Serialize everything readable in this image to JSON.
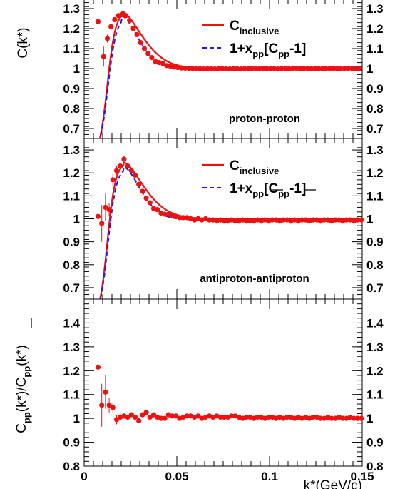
{
  "chart_data": [
    {
      "type": "scatter",
      "panel": "proton-proton",
      "ylabel": "C(k*)",
      "ylim": [
        0.65,
        1.35
      ],
      "yticks": [
        "0.7",
        "0.8",
        "0.9",
        "1",
        "1.1",
        "1.2",
        "1.3"
      ],
      "panel_label": "proton-proton",
      "legend": [
        {
          "main": "C",
          "sub": "inclusive",
          "style": "solid",
          "color": "#ee1111"
        },
        {
          "main": "1+x",
          "sub": "pp",
          "main2": "[C",
          "sub2": "pp",
          "tail": "-1]",
          "style": "dashed",
          "color": "#1a1aee"
        }
      ],
      "points": {
        "name": "",
        "color": "#ee1111",
        "x": [
          0.0075,
          0.0105,
          0.0125,
          0.0145,
          0.0165,
          0.0185,
          0.0205,
          0.0225,
          0.0245,
          0.0265,
          0.0285,
          0.0305,
          0.0325,
          0.0345,
          0.0365,
          0.0385,
          0.0405,
          0.0425,
          0.0445,
          0.0465,
          0.0485,
          0.0505,
          0.0525,
          0.0545,
          0.0565,
          0.0585,
          0.0605,
          0.0625,
          0.0645,
          0.0665,
          0.0685,
          0.0705,
          0.0725,
          0.0745,
          0.0765,
          0.0785,
          0.0805,
          0.0825,
          0.0845,
          0.0865,
          0.0885,
          0.0905,
          0.0925,
          0.0945,
          0.0965,
          0.0985,
          0.1005,
          0.1025,
          0.1045,
          0.1065,
          0.1085,
          0.1105,
          0.1125,
          0.1145,
          0.1165,
          0.1185,
          0.1205,
          0.1225,
          0.1245,
          0.1265,
          0.1285,
          0.1305,
          0.1325,
          0.1345,
          0.1365,
          0.1385,
          0.1405,
          0.1425,
          0.1445,
          0.1465,
          0.1485
        ],
        "y": [
          1.235,
          1.06,
          1.15,
          1.21,
          1.245,
          1.265,
          1.27,
          1.265,
          1.24,
          1.2,
          1.17,
          1.13,
          1.1,
          1.075,
          1.055,
          1.035,
          1.03,
          1.025,
          1.015,
          1.012,
          1.008,
          1.005,
          1.003,
          1.002,
          1.001,
          1.0,
          1.0,
          0.999,
          0.998,
          0.999,
          1.0,
          0.998,
          0.999,
          1.0,
          0.999,
          0.998,
          1.0,
          0.999,
          0.998,
          1.0,
          0.999,
          1.0,
          1.0,
          0.999,
          1.001,
          1.0,
          0.999,
          1.0,
          0.998,
          1.0,
          1.0,
          0.999,
          1.0,
          1.001,
          0.999,
          1.0,
          1.0,
          0.999,
          1.0,
          1.0,
          0.999,
          1.0,
          1.0,
          1.001,
          0.999,
          1.0,
          1.0,
          1.001,
          1.0,
          1.0,
          0.999
        ],
        "err": [
          0.16,
          0.05,
          0.02,
          0.015,
          0.01,
          0.01,
          0.008,
          0.008,
          0.008,
          0.007,
          0.006,
          0.006,
          0.005,
          0.005,
          0.005,
          0.004,
          0.004,
          0.004,
          0.004,
          0.003,
          0.003,
          0.003,
          0.003,
          0.003,
          0.003,
          0.003,
          0.003,
          0.003,
          0.003,
          0.003,
          0.003,
          0.003,
          0.003,
          0.003,
          0.003,
          0.003,
          0.003,
          0.003,
          0.003,
          0.003,
          0.003,
          0.003,
          0.003,
          0.003,
          0.003,
          0.003,
          0.003,
          0.003,
          0.003,
          0.003,
          0.003,
          0.003,
          0.003,
          0.003,
          0.003,
          0.003,
          0.003,
          0.003,
          0.003,
          0.003,
          0.003,
          0.003,
          0.003,
          0.003,
          0.003,
          0.003,
          0.003,
          0.003,
          0.003,
          0.003,
          0.003
        ]
      },
      "solid_curve": {
        "peak_x": 0.0205,
        "peak_y": 1.285
      },
      "dashed_curve": {
        "peak_x": 0.0205,
        "peak_y": 1.262
      }
    },
    {
      "type": "scatter",
      "panel": "antiproton-antiproton",
      "ylabel": "",
      "ylim": [
        0.65,
        1.35
      ],
      "yticks": [
        "0.7",
        "0.8",
        "0.9",
        "1",
        "1.1",
        "1.2",
        "1.3"
      ],
      "panel_label": "antiproton-antiproton",
      "legend": [
        {
          "main": "C",
          "sub": "inclusive",
          "style": "solid",
          "color": "#ee1111"
        },
        {
          "main": "1+x",
          "sub": "pp",
          "main2": "[C",
          "sub2": "pp",
          "tail": "-1]",
          "style": "dashed",
          "color": "#1a1aee",
          "overline": true
        }
      ],
      "points": {
        "name": "",
        "color": "#ee1111",
        "x": [
          0.0075,
          0.0095,
          0.0115,
          0.0135,
          0.0155,
          0.0175,
          0.0195,
          0.0215,
          0.0235,
          0.0255,
          0.0275,
          0.0295,
          0.0315,
          0.0335,
          0.0355,
          0.0375,
          0.0395,
          0.0415,
          0.0435,
          0.0455,
          0.0475,
          0.0495,
          0.0515,
          0.0535,
          0.0555,
          0.0575,
          0.0595,
          0.0615,
          0.0635,
          0.0655,
          0.0675,
          0.0695,
          0.0715,
          0.0735,
          0.0755,
          0.0775,
          0.0795,
          0.0815,
          0.0835,
          0.0855,
          0.0875,
          0.0895,
          0.0915,
          0.0935,
          0.0955,
          0.0975,
          0.0995,
          0.1015,
          0.1035,
          0.1055,
          0.1075,
          0.1095,
          0.1115,
          0.1135,
          0.1155,
          0.1175,
          0.1195,
          0.1215,
          0.1235,
          0.1255,
          0.1275,
          0.1295,
          0.1315,
          0.1335,
          0.1355,
          0.1375,
          0.1395,
          0.1415,
          0.1435,
          0.1455,
          0.1475,
          0.1495
        ],
        "y": [
          1.01,
          0.98,
          1.05,
          1.04,
          1.17,
          1.21,
          1.23,
          1.26,
          1.23,
          1.21,
          1.19,
          1.15,
          1.12,
          1.09,
          1.07,
          1.045,
          1.04,
          1.025,
          1.02,
          1.02,
          1.015,
          1.01,
          1.005,
          1.005,
          1.005,
          1.0,
          0.995,
          1.0,
          0.995,
          1.0,
          0.995,
          0.995,
          0.99,
          0.995,
          0.99,
          0.99,
          0.995,
          0.99,
          0.99,
          0.995,
          0.99,
          0.99,
          0.99,
          0.995,
          0.99,
          0.995,
          0.99,
          0.995,
          0.995,
          0.99,
          0.995,
          0.995,
          0.99,
          0.995,
          0.99,
          0.995,
          0.995,
          0.99,
          0.995,
          0.995,
          0.99,
          0.995,
          0.995,
          0.99,
          0.995,
          0.995,
          0.99,
          0.995,
          0.995,
          0.99,
          0.995,
          0.995
        ],
        "err": [
          0.18,
          0.08,
          0.06,
          0.03,
          0.025,
          0.02,
          0.015,
          0.012,
          0.01,
          0.009,
          0.008,
          0.007,
          0.007,
          0.006,
          0.006,
          0.005,
          0.005,
          0.005,
          0.005,
          0.005,
          0.004,
          0.004,
          0.004,
          0.004,
          0.004,
          0.004,
          0.004,
          0.004,
          0.004,
          0.004,
          0.004,
          0.004,
          0.004,
          0.004,
          0.004,
          0.004,
          0.004,
          0.004,
          0.004,
          0.004,
          0.004,
          0.004,
          0.004,
          0.004,
          0.004,
          0.004,
          0.004,
          0.004,
          0.004,
          0.004,
          0.004,
          0.004,
          0.004,
          0.004,
          0.004,
          0.004,
          0.004,
          0.004,
          0.004,
          0.004,
          0.004,
          0.004,
          0.004,
          0.004,
          0.004,
          0.004,
          0.004,
          0.004,
          0.004,
          0.004,
          0.004,
          0.004
        ]
      },
      "solid_curve": {
        "peak_x": 0.0215,
        "peak_y": 1.245
      },
      "dashed_curve": {
        "peak_x": 0.0215,
        "peak_y": 1.225
      }
    },
    {
      "type": "scatter",
      "panel": "ratio",
      "ylabel_parts": {
        "a": "C",
        "a_sub": "pp",
        "b": "(k*)/C",
        "b_sub": "pp",
        "c": "(k*)"
      },
      "ylim": [
        0.8,
        1.5
      ],
      "yticks": [
        "0.8",
        "0.9",
        "1",
        "1.1",
        "1.2",
        "1.3",
        "1.4"
      ],
      "xlabel": "k*(GeV/c)",
      "xlim": [
        0,
        0.15
      ],
      "xticks": [
        "0",
        "0.05",
        "0.1",
        "0.15"
      ],
      "points": {
        "name": "",
        "color": "#ee1111",
        "x": [
          0.0075,
          0.0095,
          0.0115,
          0.0135,
          0.0155,
          0.0175,
          0.0195,
          0.0215,
          0.0235,
          0.0255,
          0.0275,
          0.0295,
          0.0315,
          0.0335,
          0.0355,
          0.0375,
          0.0395,
          0.0415,
          0.0435,
          0.0455,
          0.0475,
          0.0495,
          0.0515,
          0.0535,
          0.0555,
          0.0575,
          0.0595,
          0.0615,
          0.0635,
          0.0655,
          0.0675,
          0.0695,
          0.0715,
          0.0735,
          0.0755,
          0.0775,
          0.0795,
          0.0815,
          0.0835,
          0.0855,
          0.0875,
          0.0895,
          0.0915,
          0.0935,
          0.0955,
          0.0975,
          0.0995,
          0.1015,
          0.1035,
          0.1055,
          0.1075,
          0.1095,
          0.1115,
          0.1135,
          0.1155,
          0.1175,
          0.1195,
          0.1215,
          0.1235,
          0.1255,
          0.1275,
          0.1295,
          0.1315,
          0.1335,
          0.1355,
          0.1375,
          0.1395,
          0.1415,
          0.1435,
          0.1455,
          0.1475,
          0.1495
        ],
        "y": [
          1.215,
          1.055,
          1.11,
          1.055,
          1.045,
          0.995,
          1.005,
          1.01,
          1.005,
          1.015,
          1.005,
          0.99,
          1.015,
          1.025,
          1.005,
          1.015,
          1.005,
          1.0,
          1.0,
          1.015,
          1.01,
          1.01,
          1.0,
          1.005,
          1.01,
          1.01,
          1.005,
          1.01,
          1.0,
          1.005,
          1.01,
          1.005,
          1.01,
          1.005,
          1.005,
          1.005,
          1.01,
          1.01,
          1.005,
          1.0,
          1.005,
          1.005,
          1.0,
          1.005,
          1.005,
          1.0,
          1.005,
          1.005,
          1.0,
          1.005,
          1.0,
          1.005,
          1.005,
          1.0,
          1.005,
          1.0,
          1.005,
          1.0,
          1.005,
          1.005,
          1.0,
          1.0,
          1.005,
          1.0,
          1.0,
          1.005,
          1.0,
          1.0,
          1.005,
          1.0,
          1.0,
          1.0
        ],
        "err": [
          0.25,
          0.09,
          0.07,
          0.03,
          0.02,
          0.02,
          0.015,
          0.012,
          0.01,
          0.01,
          0.009,
          0.008,
          0.007,
          0.007,
          0.006,
          0.006,
          0.005,
          0.005,
          0.005,
          0.005,
          0.004,
          0.004,
          0.004,
          0.004,
          0.004,
          0.004,
          0.004,
          0.004,
          0.004,
          0.004,
          0.004,
          0.004,
          0.004,
          0.004,
          0.004,
          0.004,
          0.004,
          0.004,
          0.004,
          0.004,
          0.004,
          0.004,
          0.004,
          0.004,
          0.004,
          0.004,
          0.004,
          0.004,
          0.004,
          0.004,
          0.004,
          0.004,
          0.004,
          0.004,
          0.004,
          0.004,
          0.004,
          0.004,
          0.004,
          0.004,
          0.004,
          0.004,
          0.004,
          0.004,
          0.004,
          0.004,
          0.004,
          0.004,
          0.004,
          0.004,
          0.004,
          0.004
        ]
      }
    }
  ]
}
